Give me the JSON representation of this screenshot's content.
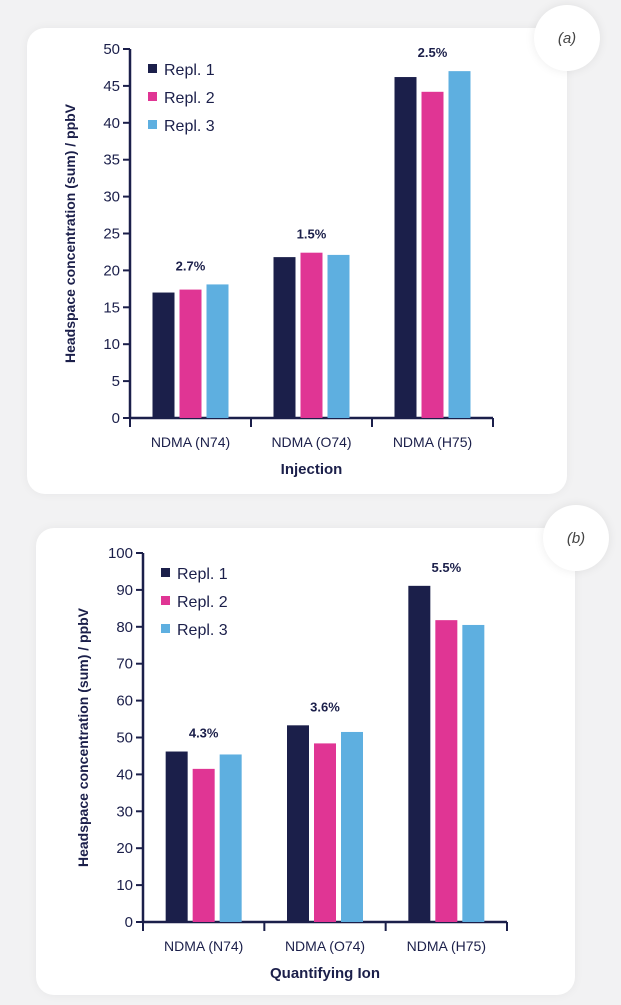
{
  "chart_data": [
    {
      "type": "bar",
      "panel": "(a)",
      "categories": [
        "NDMA (N74)",
        "NDMA (O74)",
        "NDMA (H75)"
      ],
      "series": [
        {
          "name": "Repl. 1",
          "values": [
            17.0,
            21.8,
            46.2
          ]
        },
        {
          "name": "Repl. 2",
          "values": [
            17.4,
            22.4,
            44.2
          ]
        },
        {
          "name": "Repl. 3",
          "values": [
            18.1,
            22.1,
            47.0
          ]
        }
      ],
      "annotations": [
        "2.7%",
        "1.5%",
        "2.5%"
      ],
      "xlabel": "Injection",
      "ylabel": "Headspace concentration (sum) / ppbV",
      "ylim": [
        0,
        50
      ],
      "yticks": [
        0,
        5,
        10,
        15,
        20,
        25,
        30,
        35,
        40,
        45,
        50
      ],
      "grid": false,
      "legend": "top-left"
    },
    {
      "type": "bar",
      "panel": "(b)",
      "categories": [
        "NDMA (N74)",
        "NDMA (O74)",
        "NDMA (H75)"
      ],
      "series": [
        {
          "name": "Repl. 1",
          "values": [
            46.2,
            53.3,
            91.1
          ]
        },
        {
          "name": "Repl. 2",
          "values": [
            41.5,
            48.4,
            81.8
          ]
        },
        {
          "name": "Repl. 3",
          "values": [
            45.4,
            51.5,
            80.5
          ]
        }
      ],
      "annotations": [
        "4.3%",
        "3.6%",
        "5.5%"
      ],
      "xlabel": "Quantifying Ion",
      "ylabel": "Headspace concentration (sum) / ppbV",
      "ylim": [
        0,
        100
      ],
      "yticks": [
        0,
        10,
        20,
        30,
        40,
        50,
        60,
        70,
        80,
        90,
        100
      ],
      "grid": false,
      "legend": "top-left"
    }
  ],
  "colors": {
    "series": [
      "#1b1f4a",
      "#e03594",
      "#5eafe0"
    ],
    "axis": "#1b1f4a"
  }
}
